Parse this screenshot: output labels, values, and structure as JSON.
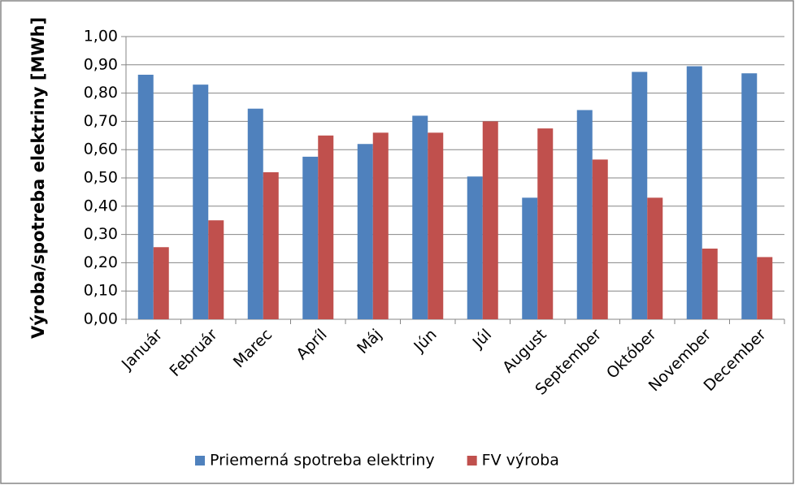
{
  "chart_data": {
    "type": "bar",
    "y_label": "Výroba/spotreba elektriny [MWh]",
    "categories": [
      "Január",
      "Február",
      "Marec",
      "Apríl",
      "Máj",
      "Jún",
      "Júl",
      "August",
      "September",
      "Október",
      "November",
      "December"
    ],
    "series": [
      {
        "name": "Priemerná spotreba elektriny",
        "color": "#4f81bd",
        "values": [
          0.865,
          0.83,
          0.745,
          0.575,
          0.62,
          0.72,
          0.505,
          0.43,
          0.74,
          0.875,
          0.895,
          0.87
        ]
      },
      {
        "name": "FV výroba",
        "color": "#c0504d",
        "values": [
          0.255,
          0.35,
          0.52,
          0.65,
          0.66,
          0.66,
          0.7,
          0.675,
          0.565,
          0.43,
          0.25,
          0.22
        ]
      }
    ],
    "ylim": [
      0,
      1
    ],
    "yticks": [
      {
        "value": 0,
        "label": "0,00"
      },
      {
        "value": 0.1,
        "label": "0,10"
      },
      {
        "value": 0.2,
        "label": "0,20"
      },
      {
        "value": 0.3,
        "label": "0,30"
      },
      {
        "value": 0.4,
        "label": "0,40"
      },
      {
        "value": 0.5,
        "label": "0,50"
      },
      {
        "value": 0.6,
        "label": "0,60"
      },
      {
        "value": 0.7,
        "label": "0,70"
      },
      {
        "value": 0.8,
        "label": "0,80"
      },
      {
        "value": 0.9,
        "label": "0,90"
      },
      {
        "value": 1,
        "label": "1,00"
      }
    ],
    "grid": true,
    "legend": "bottom"
  }
}
